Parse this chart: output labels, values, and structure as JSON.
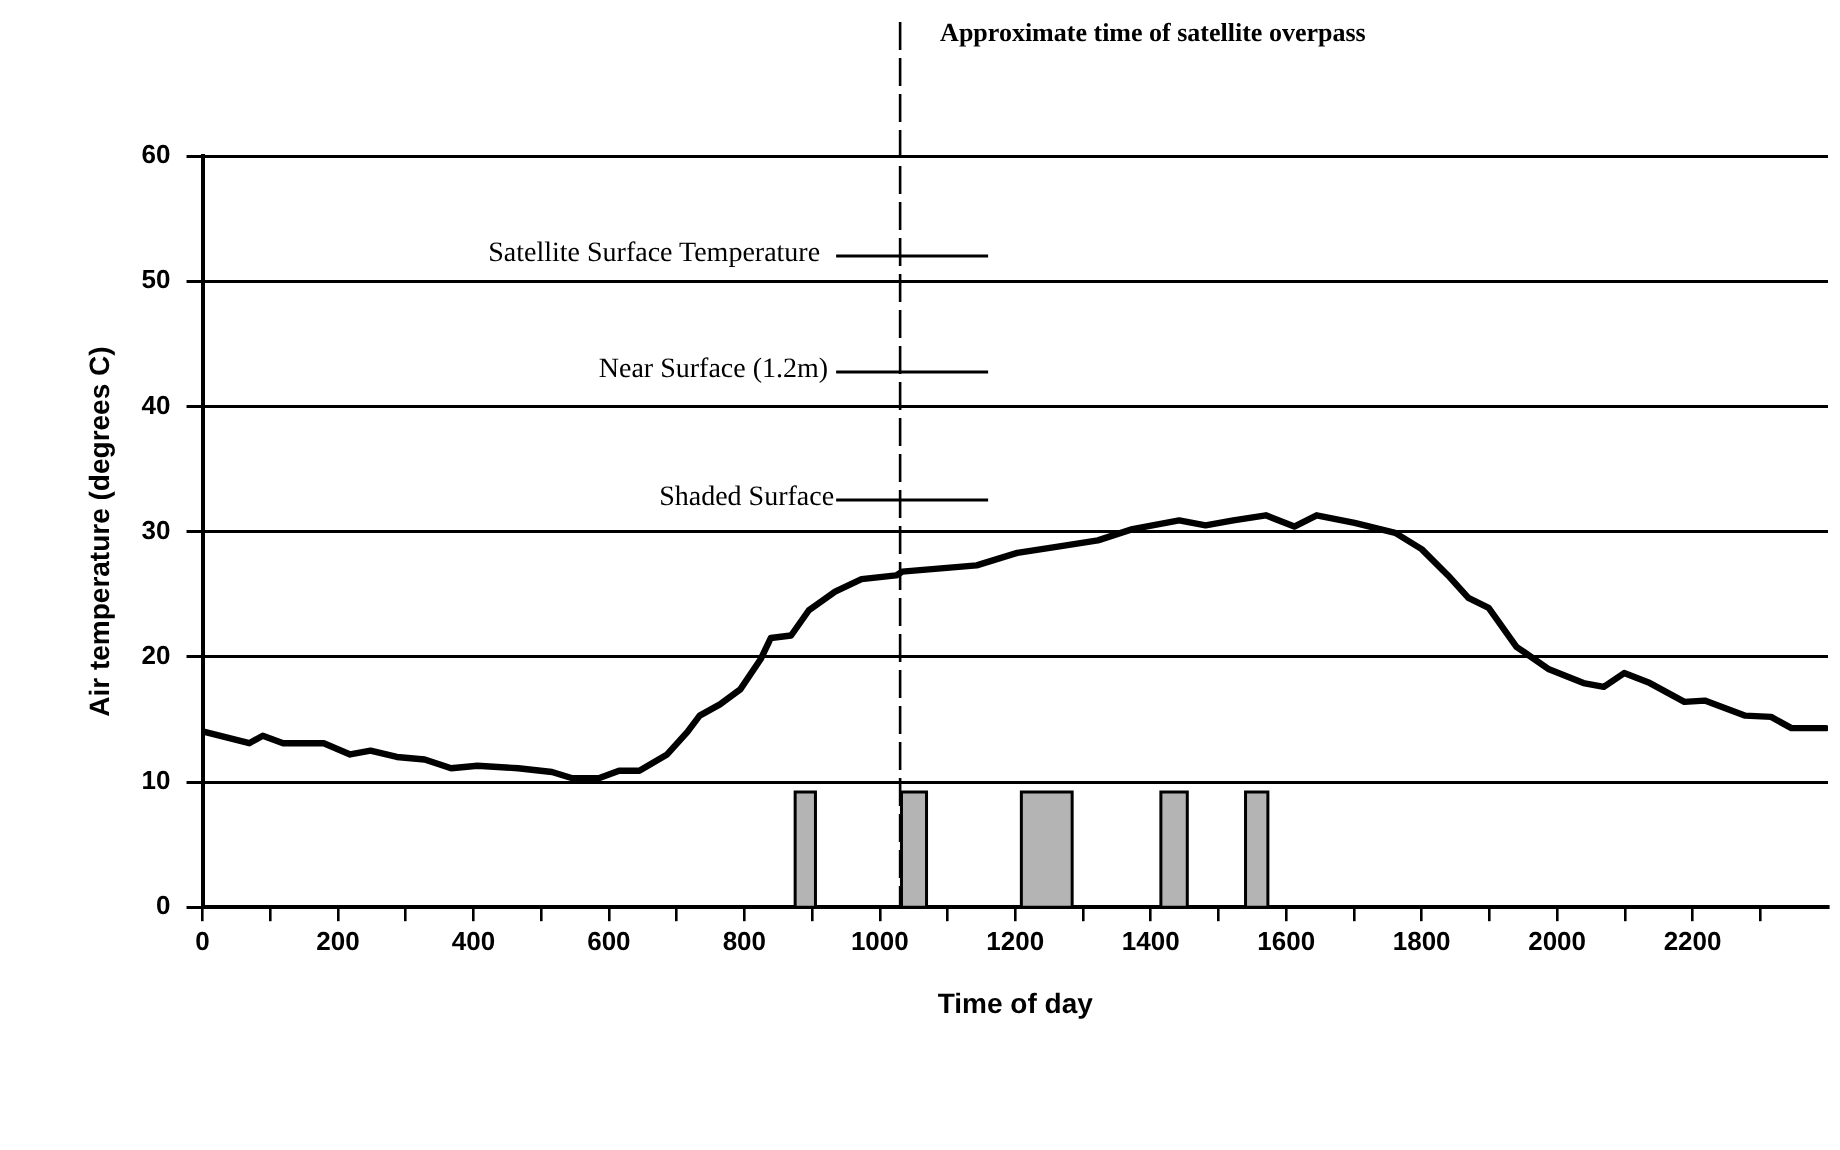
{
  "chart_data": {
    "type": "line",
    "xlabel": "Time of day",
    "ylabel": "Air temperature (degrees C)",
    "xlim": [
      0,
      2400
    ],
    "ylim": [
      0,
      60
    ],
    "xticks": [
      0,
      {
        "value": 100,
        "label": null
      },
      200,
      {
        "value": 300,
        "label": null
      },
      400,
      {
        "value": 500,
        "label": null
      },
      600,
      {
        "value": 700,
        "label": null
      },
      800,
      {
        "value": 900,
        "label": null
      },
      1000,
      {
        "value": 1100,
        "label": null
      },
      1200,
      {
        "value": 1300,
        "label": null
      },
      1400,
      {
        "value": 1500,
        "label": null
      },
      1600,
      {
        "value": 1700,
        "label": null
      },
      1800,
      {
        "value": 1900,
        "label": null
      },
      2000,
      {
        "value": 2100,
        "label": null
      },
      2200,
      {
        "value": 2300,
        "label": null
      }
    ],
    "yticks": [
      0,
      10,
      20,
      30,
      40,
      50,
      60
    ],
    "grid": "y",
    "legend": false,
    "marker": "none",
    "line_style": "solid",
    "series": [
      {
        "type": "line",
        "color": "#000000",
        "x": [
          3,
          69,
          89,
          119,
          179,
          218,
          248,
          287,
          328,
          367,
          406,
          466,
          516,
          546,
          585,
          615,
          645,
          686,
          716,
          734,
          764,
          794,
          824,
          839,
          869,
          895,
          934,
          973,
          1024,
          1033,
          1143,
          1203,
          1263,
          1322,
          1373,
          1442,
          1481,
          1522,
          1570,
          1612,
          1645,
          1701,
          1761,
          1800,
          1839,
          1869,
          1899,
          1940,
          1988,
          2039,
          2069,
          2099,
          2137,
          2188,
          2218,
          2278,
          2316,
          2346,
          2397
        ],
        "values": [
          14.0,
          13.1,
          13.7,
          13.1,
          13.1,
          12.2,
          12.5,
          12.0,
          11.8,
          11.1,
          11.3,
          11.1,
          10.8,
          10.3,
          10.3,
          10.9,
          10.9,
          12.2,
          14.0,
          15.3,
          16.2,
          17.4,
          19.8,
          21.5,
          21.7,
          23.7,
          25.2,
          26.2,
          26.5,
          26.8,
          27.3,
          28.3,
          28.8,
          29.3,
          30.2,
          30.9,
          30.5,
          30.9,
          31.3,
          30.4,
          31.3,
          30.7,
          29.9,
          28.6,
          26.5,
          24.7,
          23.9,
          20.8,
          19.0,
          17.9,
          17.6,
          18.7,
          17.9,
          16.4,
          16.5,
          15.3,
          15.2,
          14.3,
          14.3
        ]
      },
      {
        "type": "histogram",
        "color": "#b4b4b4",
        "bins": [
          875,
          905,
          1032,
          1069,
          1209,
          1284,
          1415,
          1454,
          1540,
          1573
        ],
        "values": [
          9.2,
          0,
          9.2,
          0,
          9.2,
          0,
          9.2,
          0,
          9.2
        ]
      }
    ],
    "ref_lines": [
      {
        "axis": "x",
        "value": 1030,
        "label": "Approximate time of satellite overpass",
        "line_style": "dashed",
        "color": "#000000"
      }
    ],
    "annotations": [
      "Satellite Surface Temperature",
      "Near Surface (1.2m)",
      "Shaded Surface"
    ]
  }
}
